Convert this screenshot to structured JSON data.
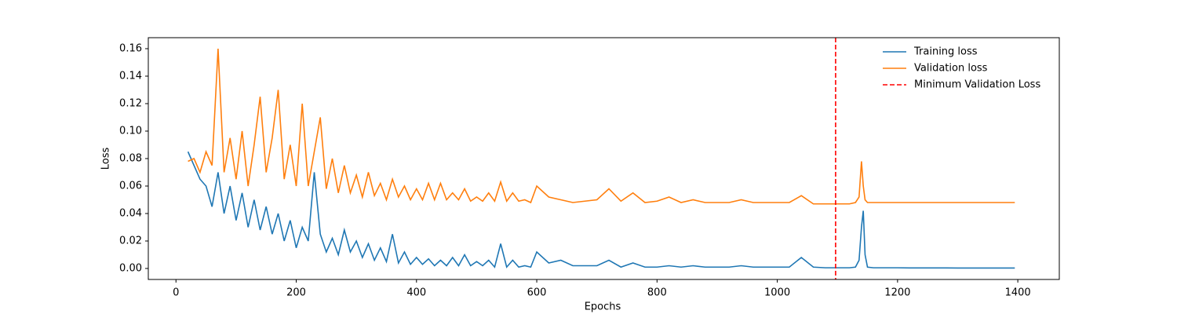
{
  "chart_data": {
    "type": "line",
    "xlabel": "Epochs",
    "ylabel": "Loss",
    "x": [
      20,
      30,
      40,
      50,
      60,
      70,
      80,
      90,
      100,
      110,
      120,
      130,
      140,
      150,
      160,
      170,
      180,
      190,
      200,
      210,
      220,
      230,
      240,
      250,
      260,
      270,
      280,
      290,
      300,
      310,
      320,
      330,
      340,
      350,
      360,
      370,
      380,
      390,
      400,
      410,
      420,
      430,
      440,
      450,
      460,
      470,
      480,
      490,
      500,
      510,
      520,
      530,
      540,
      550,
      560,
      570,
      580,
      590,
      600,
      620,
      640,
      660,
      680,
      700,
      720,
      740,
      760,
      780,
      800,
      820,
      840,
      860,
      880,
      900,
      920,
      940,
      960,
      980,
      1000,
      1020,
      1040,
      1060,
      1080,
      1100,
      1120,
      1130,
      1136,
      1140,
      1143,
      1146,
      1150,
      1160,
      1180,
      1200,
      1220,
      1240,
      1260,
      1280,
      1300,
      1320,
      1340,
      1360,
      1380,
      1395
    ],
    "series": [
      {
        "name": "Training loss",
        "color": "#1f77b4",
        "values": [
          0.085,
          0.075,
          0.065,
          0.06,
          0.045,
          0.07,
          0.04,
          0.06,
          0.035,
          0.055,
          0.03,
          0.05,
          0.028,
          0.045,
          0.025,
          0.04,
          0.02,
          0.035,
          0.015,
          0.03,
          0.02,
          0.07,
          0.025,
          0.012,
          0.022,
          0.01,
          0.028,
          0.012,
          0.02,
          0.008,
          0.018,
          0.006,
          0.015,
          0.005,
          0.025,
          0.004,
          0.012,
          0.003,
          0.008,
          0.003,
          0.007,
          0.002,
          0.006,
          0.002,
          0.008,
          0.002,
          0.01,
          0.002,
          0.005,
          0.002,
          0.006,
          0.001,
          0.018,
          0.001,
          0.006,
          0.001,
          0.002,
          0.001,
          0.012,
          0.004,
          0.006,
          0.002,
          0.002,
          0.002,
          0.006,
          0.001,
          0.004,
          0.001,
          0.001,
          0.002,
          0.001,
          0.002,
          0.001,
          0.001,
          0.001,
          0.002,
          0.001,
          0.001,
          0.001,
          0.001,
          0.008,
          0.001,
          0.0005,
          0.0005,
          0.0005,
          0.001,
          0.006,
          0.03,
          0.042,
          0.01,
          0.001,
          0.0005,
          0.0005,
          0.0005,
          0.0004,
          0.0004,
          0.0004,
          0.0004,
          0.0003,
          0.0003,
          0.0003,
          0.0003,
          0.0003,
          0.0003
        ]
      },
      {
        "name": "Validation loss",
        "color": "#ff7f0e",
        "values": [
          0.078,
          0.08,
          0.07,
          0.085,
          0.075,
          0.16,
          0.07,
          0.095,
          0.065,
          0.1,
          0.06,
          0.09,
          0.125,
          0.07,
          0.095,
          0.13,
          0.065,
          0.09,
          0.06,
          0.12,
          0.06,
          0.085,
          0.11,
          0.058,
          0.08,
          0.055,
          0.075,
          0.055,
          0.068,
          0.052,
          0.07,
          0.053,
          0.062,
          0.05,
          0.065,
          0.052,
          0.06,
          0.05,
          0.058,
          0.05,
          0.062,
          0.05,
          0.062,
          0.05,
          0.055,
          0.05,
          0.058,
          0.049,
          0.052,
          0.049,
          0.055,
          0.049,
          0.063,
          0.049,
          0.055,
          0.049,
          0.05,
          0.048,
          0.06,
          0.052,
          0.05,
          0.048,
          0.049,
          0.05,
          0.058,
          0.049,
          0.055,
          0.048,
          0.049,
          0.052,
          0.048,
          0.05,
          0.048,
          0.048,
          0.048,
          0.05,
          0.048,
          0.048,
          0.048,
          0.048,
          0.053,
          0.047,
          0.047,
          0.047,
          0.047,
          0.048,
          0.052,
          0.078,
          0.06,
          0.05,
          0.048,
          0.048,
          0.048,
          0.048,
          0.048,
          0.048,
          0.048,
          0.048,
          0.048,
          0.048,
          0.048,
          0.048,
          0.048,
          0.048
        ]
      }
    ],
    "vline": {
      "name": "Minimum Validation Loss",
      "x": 1097,
      "color": "#ff0000"
    },
    "xlim": [
      -46,
      1469
    ],
    "ylim": [
      -0.008,
      0.168
    ],
    "xticks": [
      0,
      200,
      400,
      600,
      800,
      1000,
      1200,
      1400
    ],
    "yticks": [
      {
        "value": 0,
        "label": "0.00"
      },
      {
        "value": 0.02,
        "label": "0.02"
      },
      {
        "value": 0.04,
        "label": "0.04"
      },
      {
        "value": 0.06,
        "label": "0.06"
      },
      {
        "value": 0.08,
        "label": "0.08"
      },
      {
        "value": 0.1,
        "label": "0.10"
      },
      {
        "value": 0.12,
        "label": "0.12"
      },
      {
        "value": 0.14,
        "label": "0.14"
      },
      {
        "value": 0.16,
        "label": "0.16"
      }
    ],
    "legend": "upper right"
  }
}
